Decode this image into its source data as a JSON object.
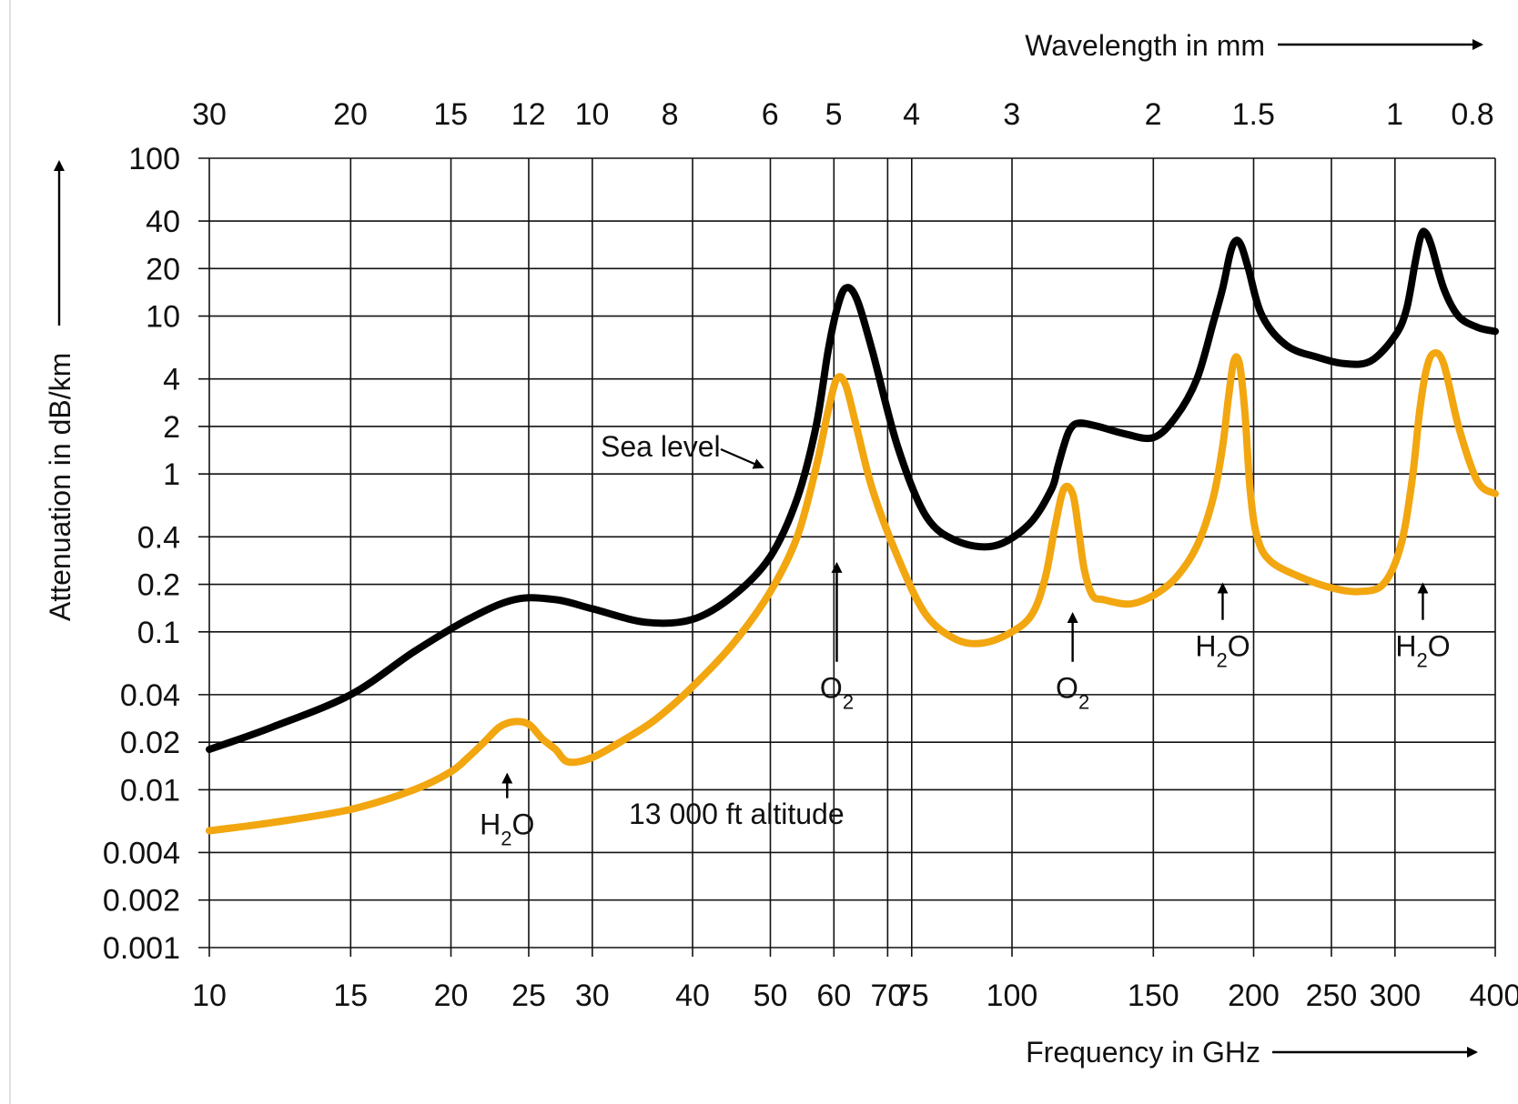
{
  "chart_data": {
    "type": "line",
    "x_scale": "log",
    "y_scale": "log",
    "xlim": [
      10,
      400
    ],
    "ylim": [
      0.001,
      100
    ],
    "grid": true,
    "xlabel": "Frequency in GHz",
    "ylabel": "Attenuation in dB/km",
    "x2label": "Wavelength in mm",
    "x_ticks": [
      10,
      15,
      20,
      25,
      30,
      40,
      50,
      60,
      70,
      75,
      100,
      150,
      200,
      250,
      300,
      400
    ],
    "x_tick_labels": [
      "10",
      "15",
      "20",
      "25",
      "30",
      "40",
      "50",
      "60",
      "70",
      "75",
      "100",
      "150",
      "200",
      "250",
      "300",
      "400"
    ],
    "y_ticks": [
      0.001,
      0.002,
      0.004,
      0.01,
      0.02,
      0.04,
      0.1,
      0.2,
      0.4,
      1,
      2,
      4,
      10,
      20,
      40,
      100
    ],
    "y_tick_labels": [
      "0.001",
      "0.002",
      "0.004",
      "0.01",
      "0.02",
      "0.04",
      "0.1",
      "0.2",
      "0.4",
      "1",
      "2",
      "4",
      "10",
      "20",
      "40",
      "100"
    ],
    "x2_ticks_mm": [
      30,
      20,
      15,
      12,
      10,
      8,
      6,
      5,
      4,
      3,
      2,
      1.5,
      1,
      0.8
    ],
    "x2_tick_labels": [
      "30",
      "20",
      "15",
      "12",
      "10",
      "8",
      "6",
      "5",
      "4",
      "3",
      "2",
      "1.5",
      "1",
      "0.8"
    ],
    "series": [
      {
        "name": "Sea level",
        "color": "#000000",
        "x": [
          10,
          12,
          15,
          18,
          21,
          24,
          27,
          30,
          35,
          40,
          45,
          50,
          54,
          57,
          59,
          60.5,
          62,
          64,
          67,
          72,
          78,
          85,
          95,
          105,
          112,
          114,
          116,
          118,
          121,
          128,
          138,
          150,
          160,
          170,
          178,
          183,
          187,
          190,
          193,
          197,
          205,
          220,
          240,
          260,
          280,
          300,
          310,
          318,
          323,
          327,
          333,
          345,
          360,
          380,
          400
        ],
        "y": [
          0.018,
          0.025,
          0.04,
          0.075,
          0.12,
          0.16,
          0.16,
          0.14,
          0.115,
          0.12,
          0.17,
          0.3,
          0.7,
          2,
          6,
          11,
          15,
          13,
          6,
          1.5,
          0.55,
          0.38,
          0.35,
          0.48,
          0.8,
          1.1,
          1.5,
          1.9,
          2.1,
          2,
          1.8,
          1.7,
          2.3,
          4,
          9,
          15,
          25,
          30,
          28,
          20,
          10,
          6.5,
          5.5,
          5,
          5.2,
          7.5,
          11,
          22,
          32,
          34,
          28,
          15,
          10,
          8.5,
          8
        ]
      },
      {
        "name": "13 000 ft altitude",
        "color": "#f2a60f",
        "x": [
          10,
          12,
          15,
          18,
          20,
          21,
          22,
          23,
          24,
          25,
          26,
          27,
          28,
          30,
          33,
          36,
          40,
          45,
          50,
          54,
          57,
          59,
          60.5,
          62,
          64,
          67,
          72,
          78,
          85,
          92,
          100,
          106,
          110,
          113,
          116,
          119,
          121,
          123,
          126,
          130,
          140,
          150,
          160,
          170,
          178,
          183,
          186,
          189,
          192,
          195,
          198,
          202,
          210,
          230,
          250,
          270,
          290,
          305,
          315,
          322,
          328,
          335,
          345,
          360,
          380,
          400
        ],
        "y": [
          0.0055,
          0.0062,
          0.0075,
          0.01,
          0.013,
          0.016,
          0.02,
          0.025,
          0.027,
          0.026,
          0.021,
          0.018,
          0.015,
          0.016,
          0.021,
          0.028,
          0.045,
          0.085,
          0.18,
          0.4,
          1.1,
          2.5,
          4,
          3.7,
          2,
          0.8,
          0.3,
          0.13,
          0.09,
          0.085,
          0.1,
          0.13,
          0.22,
          0.45,
          0.8,
          0.75,
          0.45,
          0.25,
          0.17,
          0.16,
          0.15,
          0.17,
          0.22,
          0.35,
          0.7,
          1.5,
          3,
          5.2,
          5,
          2.5,
          0.8,
          0.4,
          0.28,
          0.22,
          0.19,
          0.18,
          0.2,
          0.35,
          0.9,
          2.5,
          4.5,
          5.8,
          5,
          2,
          0.9,
          0.75
        ]
      }
    ],
    "annotations": [
      {
        "main": "H",
        "sub": "2",
        "tail": "O",
        "arrow_x": 23.5,
        "arrow_y_from": 0.0052,
        "arrow_y_to": 0.0125
      },
      {
        "main": "O",
        "sub": "2",
        "tail": "",
        "arrow_x": 60.5,
        "arrow_y_from": 0.038,
        "arrow_y_to": 0.27
      },
      {
        "main": "O",
        "sub": "2",
        "tail": "",
        "arrow_x": 119,
        "arrow_y_from": 0.038,
        "arrow_y_to": 0.13
      },
      {
        "main": "H",
        "sub": "2",
        "tail": "O",
        "arrow_x": 183,
        "arrow_y_from": 0.07,
        "arrow_y_to": 0.2
      },
      {
        "main": "H",
        "sub": "2",
        "tail": "O",
        "arrow_x": 325,
        "arrow_y_from": 0.07,
        "arrow_y_to": 0.2
      }
    ],
    "labels": {
      "sea_level": "Sea level",
      "altitude": "13 000 ft altitude"
    },
    "legend": "inline labels"
  }
}
